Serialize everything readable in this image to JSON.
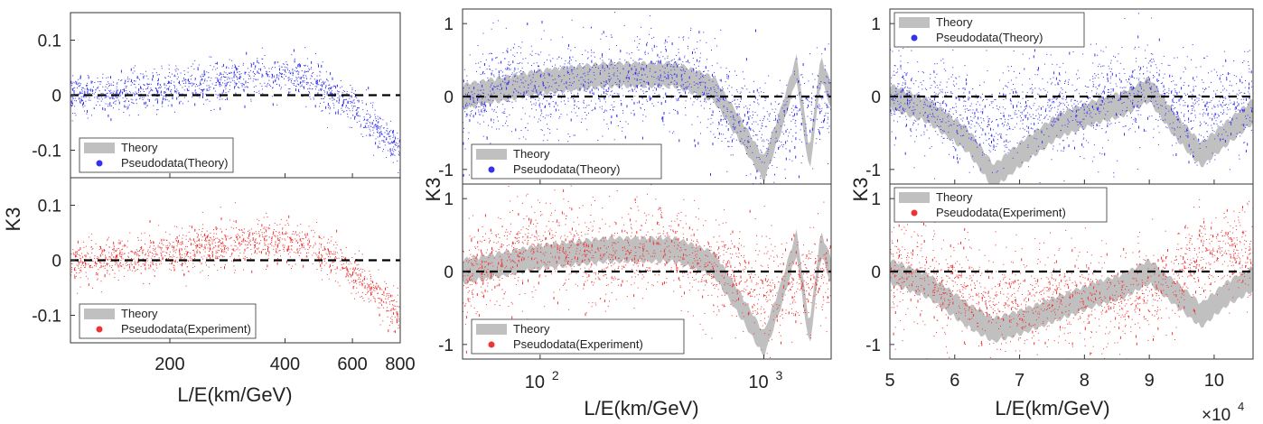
{
  "legend": {
    "theory": "Theory",
    "pseudo_theory": "Pseudodata(Theory)",
    "pseudo_experiment": "Pseudodata(Experiment)"
  },
  "colors": {
    "theory": "#c0c0c0",
    "pseudo_theory": "#3333ee",
    "pseudo_experiment": "#ee3333",
    "zero_line": "#000000"
  },
  "chart_data": [
    {
      "type": "scatter",
      "id": "left",
      "xlabel": "L/E(km/GeV)",
      "ylabel": "K3",
      "xscale": "log",
      "xlim": [
        110,
        800
      ],
      "xticks": [
        200,
        400,
        600,
        800
      ],
      "xtick_labels": [
        "200",
        "400",
        "600",
        "800"
      ],
      "panels": [
        {
          "ylim": [
            -0.15,
            0.15
          ],
          "yticks": [
            -0.1,
            0,
            0.1
          ],
          "ytick_labels": [
            "-0.1",
            "0",
            "0.1"
          ],
          "legend_position": "lower-left",
          "series": [
            {
              "name": "Theory",
              "kind": "band"
            },
            {
              "name": "Pseudodata(Theory)",
              "kind": "points",
              "x": [
                110,
                150,
                200,
                250,
                300,
                350,
                400,
                450,
                500,
                550,
                600,
                650,
                700,
                750,
                800
              ],
              "y": [
                0,
                0.005,
                0.015,
                0.025,
                0.03,
                0.035,
                0.035,
                0.03,
                0.015,
                -0.005,
                -0.02,
                -0.04,
                -0.06,
                -0.08,
                -0.1
              ]
            }
          ]
        },
        {
          "ylim": [
            -0.15,
            0.15
          ],
          "yticks": [
            -0.1,
            0,
            0.1
          ],
          "ytick_labels": [
            "-0.1",
            "0",
            "0.1"
          ],
          "legend_position": "lower-left",
          "series": [
            {
              "name": "Theory",
              "kind": "band"
            },
            {
              "name": "Pseudodata(Experiment)",
              "kind": "points",
              "x": [
                110,
                150,
                200,
                250,
                300,
                350,
                400,
                450,
                500,
                550,
                600,
                650,
                700,
                750,
                800
              ],
              "y": [
                0,
                0.005,
                0.015,
                0.025,
                0.03,
                0.035,
                0.035,
                0.03,
                0.015,
                -0.005,
                -0.02,
                -0.04,
                -0.06,
                -0.08,
                -0.1
              ]
            }
          ]
        }
      ]
    },
    {
      "type": "scatter",
      "id": "middle",
      "xlabel": "L/E(km/GeV)",
      "ylabel": "K3",
      "xscale": "log",
      "xlim": [
        45,
        2000
      ],
      "xticks": [
        100,
        1000
      ],
      "xtick_labels": [
        "10^2",
        "10^3"
      ],
      "panels": [
        {
          "ylim": [
            -1.2,
            1.2
          ],
          "yticks": [
            -1,
            0,
            1
          ],
          "ytick_labels": [
            "-1",
            "0",
            "1"
          ],
          "legend_position": "lower-left",
          "series": [
            {
              "name": "Theory",
              "kind": "band",
              "x": [
                45,
                100,
                200,
                400,
                600,
                800,
                1000,
                1200,
                1400,
                1600,
                1800,
                2000
              ],
              "y": [
                0,
                0.2,
                0.3,
                0.3,
                0.1,
                -0.5,
                -1.0,
                -0.3,
                0.4,
                -0.9,
                0.4,
                0
              ]
            },
            {
              "name": "Pseudodata(Theory)",
              "kind": "points",
              "x": [
                45,
                80,
                100,
                150,
                200,
                300,
                400,
                500,
                600,
                800,
                1000,
                1500,
                2000
              ],
              "y": [
                -0.1,
                0.2,
                0.1,
                0.15,
                0.2,
                0.25,
                0.3,
                0.2,
                0,
                -0.3,
                -0.5,
                -0.2,
                0
              ]
            }
          ]
        },
        {
          "ylim": [
            -1.2,
            1.2
          ],
          "yticks": [
            -1,
            0,
            1
          ],
          "ytick_labels": [
            "-1",
            "0",
            "1"
          ],
          "legend_position": "lower-left",
          "series": [
            {
              "name": "Theory",
              "kind": "band",
              "x": [
                45,
                100,
                200,
                400,
                600,
                800,
                1000,
                1200,
                1400,
                1600,
                1800,
                2000
              ],
              "y": [
                0,
                0.2,
                0.3,
                0.3,
                0.1,
                -0.5,
                -1.0,
                -0.3,
                0.4,
                -0.9,
                0.4,
                0
              ]
            },
            {
              "name": "Pseudodata(Experiment)",
              "kind": "points",
              "x": [
                45,
                80,
                100,
                150,
                200,
                300,
                400,
                500,
                600,
                800,
                1000,
                1500,
                2000
              ],
              "y": [
                -0.1,
                0.3,
                0.4,
                0.3,
                0.2,
                0.35,
                0.3,
                0.2,
                0.05,
                -0.1,
                -0.3,
                -0.1,
                0
              ]
            }
          ]
        }
      ]
    },
    {
      "type": "scatter",
      "id": "right",
      "xlabel": "L/E(km/GeV)",
      "ylabel": "K3",
      "xscale": "linear",
      "xlim": [
        50000,
        106000
      ],
      "xticks": [
        50000,
        60000,
        70000,
        80000,
        90000,
        100000
      ],
      "xtick_labels": [
        "5",
        "6",
        "7",
        "8",
        "9",
        "10"
      ],
      "x_multiplier": "×10^4",
      "panels": [
        {
          "ylim": [
            -1.2,
            1.2
          ],
          "yticks": [
            -1,
            0,
            1
          ],
          "ytick_labels": [
            "-1",
            "0",
            "1"
          ],
          "legend_position": "top-left",
          "series": [
            {
              "name": "Theory",
              "kind": "band",
              "x": [
                50000,
                56000,
                62000,
                66000,
                70000,
                76000,
                82000,
                86000,
                90000,
                94000,
                98000,
                102000,
                106000
              ],
              "y": [
                0,
                -0.2,
                -0.6,
                -1.1,
                -0.8,
                -0.4,
                -0.2,
                -0.1,
                0.1,
                -0.4,
                -0.8,
                -0.5,
                -0.2
              ]
            },
            {
              "name": "Pseudodata(Theory)",
              "kind": "points",
              "x": [
                50000,
                56000,
                62000,
                66000,
                70000,
                76000,
                82000,
                86000,
                90000,
                94000,
                98000,
                102000,
                106000
              ],
              "y": [
                0.1,
                -0.1,
                -0.2,
                -0.4,
                -0.2,
                -0.1,
                0,
                0.1,
                0.2,
                -0.1,
                -0.2,
                -0.1,
                0
              ]
            }
          ]
        },
        {
          "ylim": [
            -1.2,
            1.2
          ],
          "yticks": [
            -1,
            0,
            1
          ],
          "ytick_labels": [
            "-1",
            "0",
            "1"
          ],
          "legend_position": "top-left",
          "series": [
            {
              "name": "Theory",
              "kind": "band",
              "x": [
                50000,
                56000,
                62000,
                66000,
                70000,
                76000,
                82000,
                86000,
                90000,
                94000,
                98000,
                102000,
                106000
              ],
              "y": [
                0,
                -0.2,
                -0.6,
                -0.8,
                -0.7,
                -0.5,
                -0.3,
                -0.2,
                0,
                -0.3,
                -0.6,
                -0.3,
                -0.1
              ]
            },
            {
              "name": "Pseudodata(Experiment)",
              "kind": "points",
              "x": [
                50000,
                56000,
                62000,
                66000,
                70000,
                76000,
                82000,
                86000,
                90000,
                94000,
                98000,
                102000,
                106000
              ],
              "y": [
                0,
                -0.1,
                -0.3,
                -0.4,
                -0.35,
                -0.3,
                -0.3,
                -0.4,
                -0.2,
                0,
                0.2,
                0.3,
                0.2
              ]
            }
          ]
        }
      ]
    }
  ]
}
